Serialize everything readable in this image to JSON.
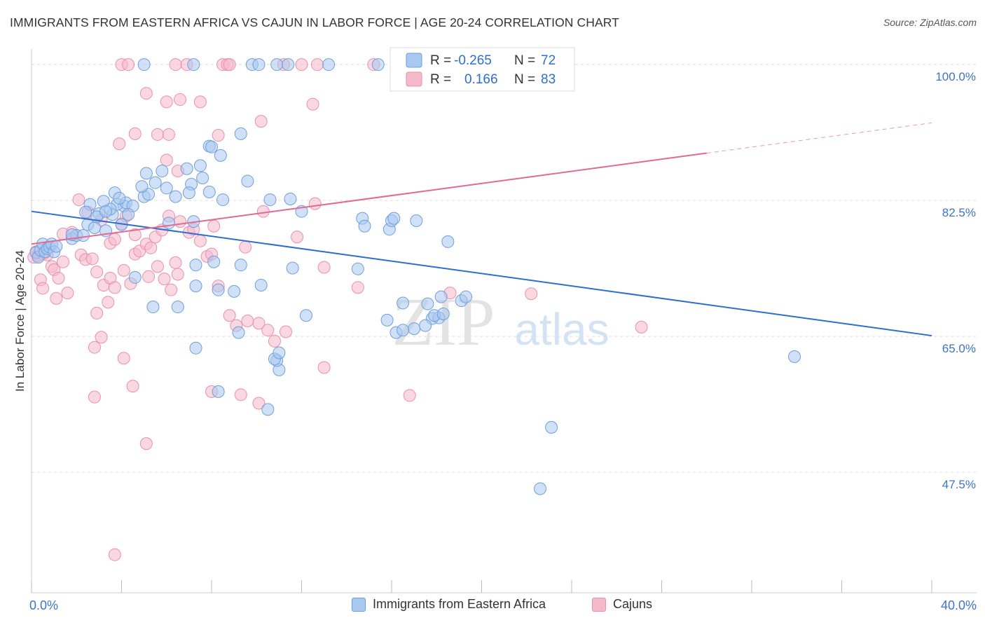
{
  "header": {
    "title": "IMMIGRANTS FROM EASTERN AFRICA VS CAJUN IN LABOR FORCE | AGE 20-24 CORRELATION CHART",
    "source": "Source: ZipAtlas.com"
  },
  "watermark": {
    "zip": "ZIP",
    "atlas": "atlas"
  },
  "colors": {
    "blue_fill": "#a9c8f0",
    "blue_stroke": "#6f9fdc",
    "blue_line": "#2b6fd0",
    "pink_fill": "#f6b8cb",
    "pink_stroke": "#ea8fac",
    "pink_line": "#e26a92",
    "axis_label": "#3d73c9",
    "grid": "#dddddd"
  },
  "legend": {
    "rows": [
      {
        "r_label": "R =",
        "r_value": "-0.265",
        "n_label": "N =",
        "n_value": "72"
      },
      {
        "r_label": "R =",
        "r_value": "0.166",
        "n_label": "N =",
        "n_value": "83"
      }
    ]
  },
  "chart_data": {
    "type": "scatter",
    "title": "IMMIGRANTS FROM EASTERN AFRICA VS CAJUN IN LABOR FORCE | AGE 20-24 CORRELATION CHART",
    "xlabel": "",
    "ylabel": "In Labor Force | Age 20-24",
    "xlim": [
      0,
      40
    ],
    "ylim": [
      32,
      102
    ],
    "x_tick_labels": [
      "0.0%",
      "40.0%"
    ],
    "y_ticks": [
      100.0,
      82.5,
      65.0,
      47.5
    ],
    "y_tick_labels": [
      "100.0%",
      "82.5%",
      "65.0%",
      "47.5%"
    ],
    "grid": "dashed horizontal",
    "legend_position": "top-center",
    "series": [
      {
        "name": "Immigrants from Eastern Africa",
        "color": "blue",
        "r": -0.265,
        "n": 72,
        "trend": {
          "x": [
            0,
            40
          ],
          "y": [
            81.1,
            65.1
          ]
        },
        "points": [
          [
            0.2,
            75.8
          ],
          [
            0.3,
            75.2
          ],
          [
            0.4,
            76.1
          ],
          [
            0.5,
            76.9
          ],
          [
            0.6,
            75.9
          ],
          [
            0.7,
            76.3
          ],
          [
            0.8,
            76.5
          ],
          [
            0.9,
            76.9
          ],
          [
            1.0,
            75.9
          ],
          [
            1.1,
            76.6
          ],
          [
            1.8,
            77.6
          ],
          [
            2.0,
            78.0
          ],
          [
            2.3,
            78.0
          ],
          [
            2.5,
            79.4
          ],
          [
            2.8,
            79.0
          ],
          [
            3.0,
            80.8
          ],
          [
            2.9,
            80.4
          ],
          [
            3.3,
            78.6
          ],
          [
            3.6,
            80.7
          ],
          [
            4.0,
            79.4
          ],
          [
            4.1,
            81.8
          ],
          [
            3.8,
            82.0
          ],
          [
            3.5,
            81.4
          ],
          [
            4.2,
            82.2
          ],
          [
            4.5,
            81.8
          ],
          [
            3.7,
            83.5
          ],
          [
            3.9,
            82.8
          ],
          [
            3.2,
            82.4
          ],
          [
            3.3,
            81.1
          ],
          [
            4.3,
            80.7
          ],
          [
            2.6,
            82.0
          ],
          [
            2.4,
            81.0
          ],
          [
            1.8,
            78.1
          ],
          [
            5.0,
            83.0
          ],
          [
            5.2,
            83.3
          ],
          [
            4.9,
            84.3
          ],
          [
            5.5,
            84.8
          ],
          [
            6.0,
            84.1
          ],
          [
            6.4,
            83.0
          ],
          [
            5.1,
            86.0
          ],
          [
            5.8,
            86.3
          ],
          [
            6.9,
            86.6
          ],
          [
            7.1,
            84.6
          ],
          [
            7.6,
            85.4
          ],
          [
            7.9,
            83.6
          ],
          [
            8.5,
            82.6
          ],
          [
            7.0,
            83.5
          ],
          [
            7.5,
            87.0
          ],
          [
            8.4,
            88.3
          ],
          [
            9.6,
            85.0
          ],
          [
            6.1,
            79.6
          ],
          [
            7.2,
            79.8
          ],
          [
            7.9,
            89.5
          ],
          [
            8.0,
            89.4
          ],
          [
            9.3,
            91.1
          ],
          [
            10.6,
            82.6
          ],
          [
            11.5,
            82.7
          ],
          [
            12.0,
            81.1
          ],
          [
            14.7,
            80.2
          ],
          [
            14.8,
            79.2
          ],
          [
            15.9,
            78.8
          ],
          [
            16.0,
            79.9
          ],
          [
            16.1,
            80.2
          ],
          [
            17.1,
            79.9
          ],
          [
            18.5,
            77.2
          ],
          [
            7.3,
            74.2
          ],
          [
            8.1,
            74.6
          ],
          [
            9.3,
            74.2
          ],
          [
            11.6,
            73.8
          ],
          [
            14.5,
            73.7
          ],
          [
            4.6,
            72.6
          ],
          [
            7.3,
            71.5
          ],
          [
            8.3,
            71.0
          ],
          [
            9.0,
            70.8
          ],
          [
            10.2,
            71.6
          ],
          [
            5.4,
            68.8
          ],
          [
            6.5,
            68.8
          ],
          [
            8.3,
            57.9
          ],
          [
            10.5,
            55.6
          ],
          [
            11.0,
            60.7
          ],
          [
            10.9,
            61.9
          ],
          [
            10.8,
            62.1
          ],
          [
            11.0,
            62.9
          ],
          [
            7.3,
            63.5
          ],
          [
            9.2,
            65.5
          ],
          [
            12.2,
            67.7
          ],
          [
            15.8,
            67.1
          ],
          [
            17.8,
            67.3
          ],
          [
            18.1,
            67.4
          ],
          [
            17.9,
            67.7
          ],
          [
            17.0,
            66.0
          ],
          [
            16.2,
            65.5
          ],
          [
            16.5,
            65.8
          ],
          [
            17.5,
            66.4
          ],
          [
            18.3,
            67.9
          ],
          [
            19.1,
            69.6
          ],
          [
            19.3,
            70.1
          ],
          [
            18.2,
            70.1
          ],
          [
            17.6,
            69.2
          ],
          [
            16.5,
            69.3
          ],
          [
            33.9,
            62.4
          ],
          [
            23.1,
            53.3
          ],
          [
            22.6,
            45.4
          ],
          [
            7.2,
            100.0
          ],
          [
            9.8,
            100.0
          ],
          [
            10.1,
            100.0
          ],
          [
            10.9,
            100.0
          ],
          [
            11.4,
            100.0
          ],
          [
            13.2,
            100.0
          ],
          [
            15.4,
            100.0
          ],
          [
            20.5,
            100.0
          ],
          [
            5.0,
            100.0
          ]
        ]
      },
      {
        "name": "Cajuns",
        "color": "pink",
        "r": 0.166,
        "n": 83,
        "trend": {
          "x": [
            0,
            30
          ],
          "y": [
            76.9,
            88.6
          ]
        },
        "trend_dashed": {
          "x": [
            30,
            40
          ],
          "y": [
            88.6,
            92.5
          ]
        },
        "points": [
          [
            0.1,
            75.2
          ],
          [
            0.2,
            75.9
          ],
          [
            0.3,
            75.4
          ],
          [
            0.5,
            75.6
          ],
          [
            0.6,
            75.8
          ],
          [
            0.7,
            75.5
          ],
          [
            0.9,
            74.0
          ],
          [
            1.0,
            73.6
          ],
          [
            1.2,
            72.5
          ],
          [
            1.4,
            74.6
          ],
          [
            0.4,
            72.3
          ],
          [
            0.5,
            71.2
          ],
          [
            1.1,
            69.9
          ],
          [
            1.6,
            70.6
          ],
          [
            1.8,
            78.4
          ],
          [
            1.4,
            78.2
          ],
          [
            2.2,
            75.5
          ],
          [
            2.4,
            74.9
          ],
          [
            2.7,
            75.0
          ],
          [
            2.9,
            73.3
          ],
          [
            3.2,
            71.6
          ],
          [
            3.5,
            72.5
          ],
          [
            3.7,
            71.3
          ],
          [
            3.4,
            69.4
          ],
          [
            4.1,
            73.5
          ],
          [
            4.4,
            71.8
          ],
          [
            4.6,
            75.6
          ],
          [
            4.8,
            76.0
          ],
          [
            5.2,
            72.7
          ],
          [
            5.6,
            74.0
          ],
          [
            5.9,
            72.4
          ],
          [
            6.2,
            71.0
          ],
          [
            6.4,
            74.5
          ],
          [
            6.5,
            73.0
          ],
          [
            2.9,
            68.0
          ],
          [
            3.1,
            64.9
          ],
          [
            2.8,
            63.6
          ],
          [
            3.5,
            77.0
          ],
          [
            3.7,
            77.5
          ],
          [
            4.0,
            79.5
          ],
          [
            4.2,
            80.5
          ],
          [
            4.6,
            78.1
          ],
          [
            5.1,
            76.9
          ],
          [
            5.5,
            77.8
          ],
          [
            5.8,
            78.7
          ],
          [
            6.1,
            80.5
          ],
          [
            6.6,
            79.8
          ],
          [
            7.0,
            78.4
          ],
          [
            7.2,
            78.8
          ],
          [
            7.5,
            77.3
          ],
          [
            7.8,
            75.3
          ],
          [
            8.0,
            75.6
          ],
          [
            8.3,
            71.5
          ],
          [
            8.8,
            67.7
          ],
          [
            9.1,
            66.4
          ],
          [
            9.6,
            67.0
          ],
          [
            10.1,
            66.7
          ],
          [
            10.5,
            65.8
          ],
          [
            10.8,
            64.4
          ],
          [
            11.3,
            65.6
          ],
          [
            11.8,
            77.8
          ],
          [
            13.0,
            73.9
          ],
          [
            14.5,
            71.3
          ],
          [
            18.6,
            70.6
          ],
          [
            22.2,
            70.5
          ],
          [
            27.1,
            66.2
          ],
          [
            2.1,
            82.6
          ],
          [
            2.5,
            81.0
          ],
          [
            3.1,
            80.0
          ],
          [
            5.3,
            76.4
          ],
          [
            8.1,
            79.2
          ],
          [
            9.5,
            76.5
          ],
          [
            10.3,
            81.1
          ],
          [
            12.6,
            82.1
          ],
          [
            5.1,
            96.3
          ],
          [
            6.0,
            95.2
          ],
          [
            6.6,
            95.5
          ],
          [
            7.5,
            95.2
          ],
          [
            8.3,
            90.9
          ],
          [
            3.9,
            89.8
          ],
          [
            4.6,
            91.1
          ],
          [
            5.6,
            91.0
          ],
          [
            6.1,
            91.0
          ],
          [
            6.0,
            87.7
          ],
          [
            6.5,
            86.3
          ],
          [
            10.2,
            92.7
          ],
          [
            12.5,
            94.9
          ],
          [
            2.8,
            57.2
          ],
          [
            4.5,
            58.6
          ],
          [
            5.1,
            51.2
          ],
          [
            3.7,
            36.9
          ],
          [
            4.1,
            62.2
          ],
          [
            8.0,
            57.9
          ],
          [
            9.3,
            57.5
          ],
          [
            10.1,
            56.4
          ],
          [
            13.0,
            61.0
          ],
          [
            16.8,
            57.4
          ],
          [
            4.0,
            100.0
          ],
          [
            4.3,
            100.0
          ],
          [
            6.4,
            100.0
          ],
          [
            6.9,
            100.0
          ],
          [
            8.5,
            100.0
          ],
          [
            8.7,
            100.0
          ],
          [
            8.8,
            100.0
          ],
          [
            11.2,
            100.0
          ],
          [
            12.0,
            100.0
          ],
          [
            12.7,
            100.0
          ],
          [
            15.2,
            100.0
          ],
          [
            22.9,
            100.0
          ]
        ]
      }
    ]
  },
  "bottom_legend": {
    "items": [
      {
        "label": "Immigrants from Eastern Africa"
      },
      {
        "label": "Cajuns"
      }
    ]
  }
}
